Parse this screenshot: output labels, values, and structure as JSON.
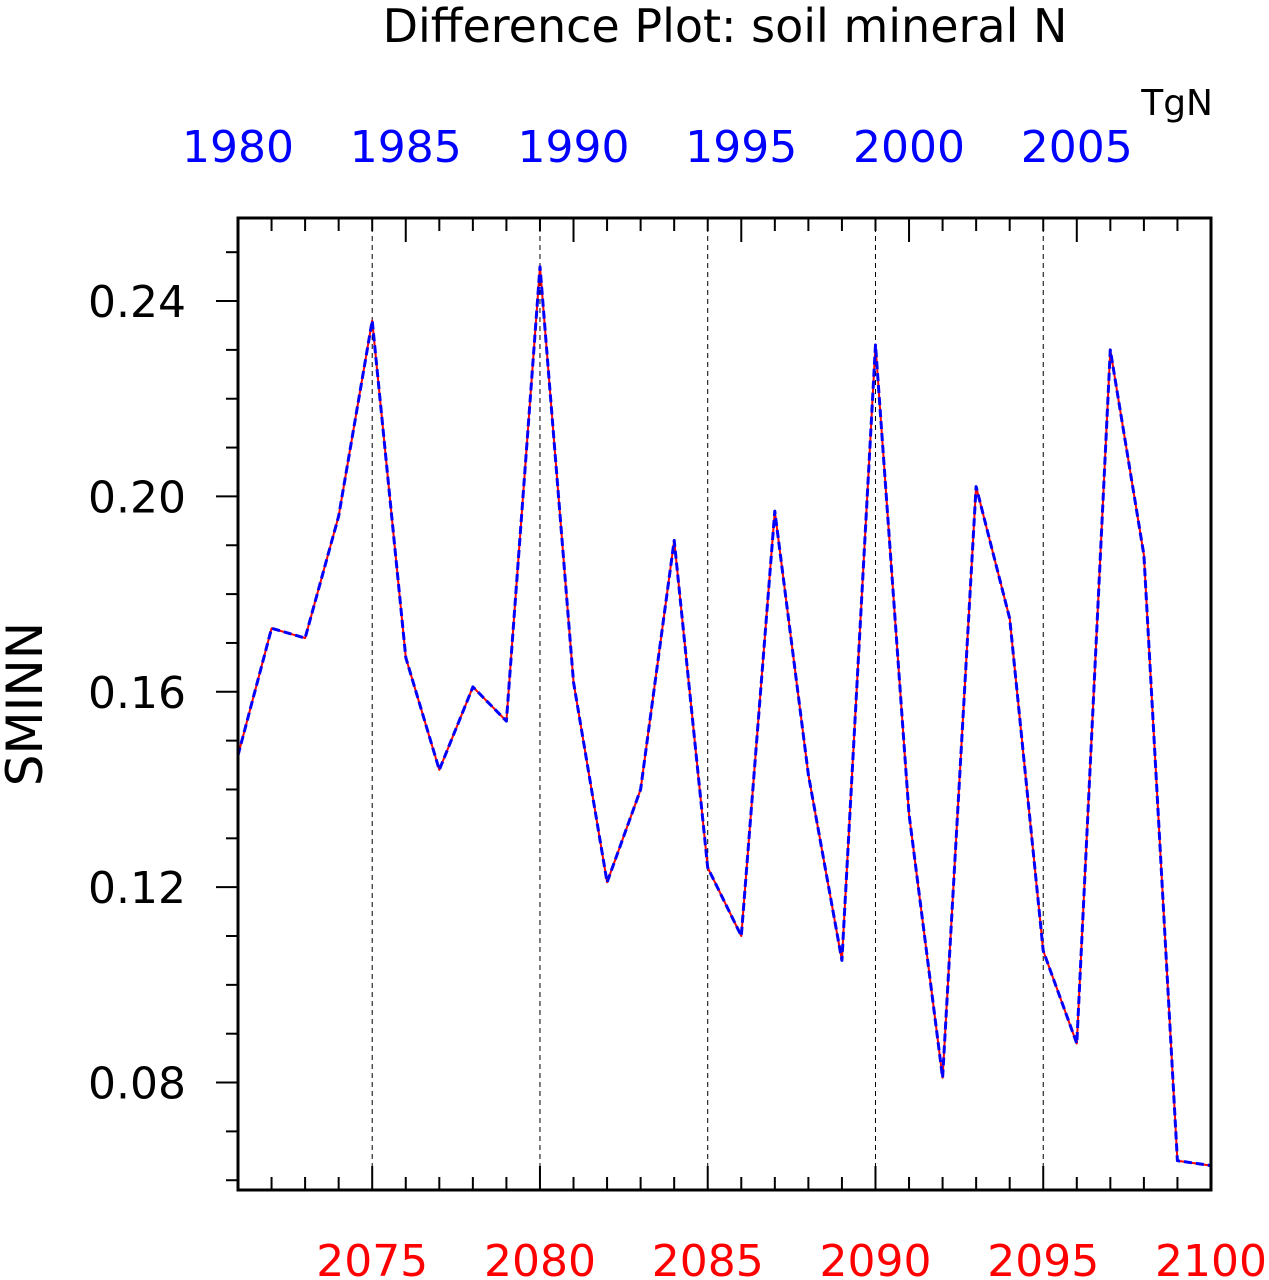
{
  "chart_data": {
    "type": "line",
    "title": "Difference Plot: soil mineral N",
    "units": "TgN",
    "ylabel": "SMINN",
    "ylim": [
      0.058,
      0.257
    ],
    "yticks": [
      "0.08",
      "0.12",
      "0.16",
      "0.20",
      "0.24"
    ],
    "bottom_axis": {
      "range": [
        2071,
        2100
      ],
      "ticks": [
        "2075",
        "2080",
        "2085",
        "2090",
        "2095",
        "2100"
      ],
      "color": "#ff0000"
    },
    "top_axis": {
      "range": [
        1980,
        2009
      ],
      "ticks": [
        "1980",
        "1985",
        "1990",
        "1995",
        "2000",
        "2005"
      ],
      "color": "#0000ff"
    },
    "grid": "dashed vertical lines at major bottom-axis ticks",
    "series": [
      {
        "color": "#ff0000",
        "style": "solid",
        "x": [
          2071,
          2072,
          2073,
          2074,
          2075,
          2076,
          2077,
          2078,
          2079,
          2080,
          2081,
          2082,
          2083,
          2084,
          2085,
          2086,
          2087,
          2088,
          2089,
          2090,
          2091,
          2092,
          2093,
          2094,
          2095,
          2096,
          2097,
          2098,
          2099,
          2100
        ],
        "values": [
          0.147,
          0.173,
          0.171,
          0.196,
          0.236,
          0.167,
          0.144,
          0.161,
          0.154,
          0.247,
          0.162,
          0.121,
          0.14,
          0.191,
          0.124,
          0.11,
          0.197,
          0.143,
          0.105,
          0.231,
          0.135,
          0.081,
          0.202,
          0.175,
          0.107,
          0.088,
          0.23,
          0.188,
          0.064,
          0.063
        ]
      },
      {
        "color": "#0000ff",
        "style": "dashed",
        "x": [
          1980,
          1981,
          1982,
          1983,
          1984,
          1985,
          1986,
          1987,
          1988,
          1989,
          1990,
          1991,
          1992,
          1993,
          1994,
          1995,
          1996,
          1997,
          1998,
          1999,
          2000,
          2001,
          2002,
          2003,
          2004,
          2005,
          2006,
          2007,
          2008,
          2009
        ],
        "values": [
          0.147,
          0.173,
          0.171,
          0.196,
          0.236,
          0.167,
          0.144,
          0.161,
          0.154,
          0.247,
          0.162,
          0.121,
          0.14,
          0.191,
          0.124,
          0.11,
          0.197,
          0.143,
          0.105,
          0.231,
          0.135,
          0.081,
          0.202,
          0.175,
          0.107,
          0.088,
          0.23,
          0.188,
          0.064,
          0.063
        ]
      }
    ]
  }
}
